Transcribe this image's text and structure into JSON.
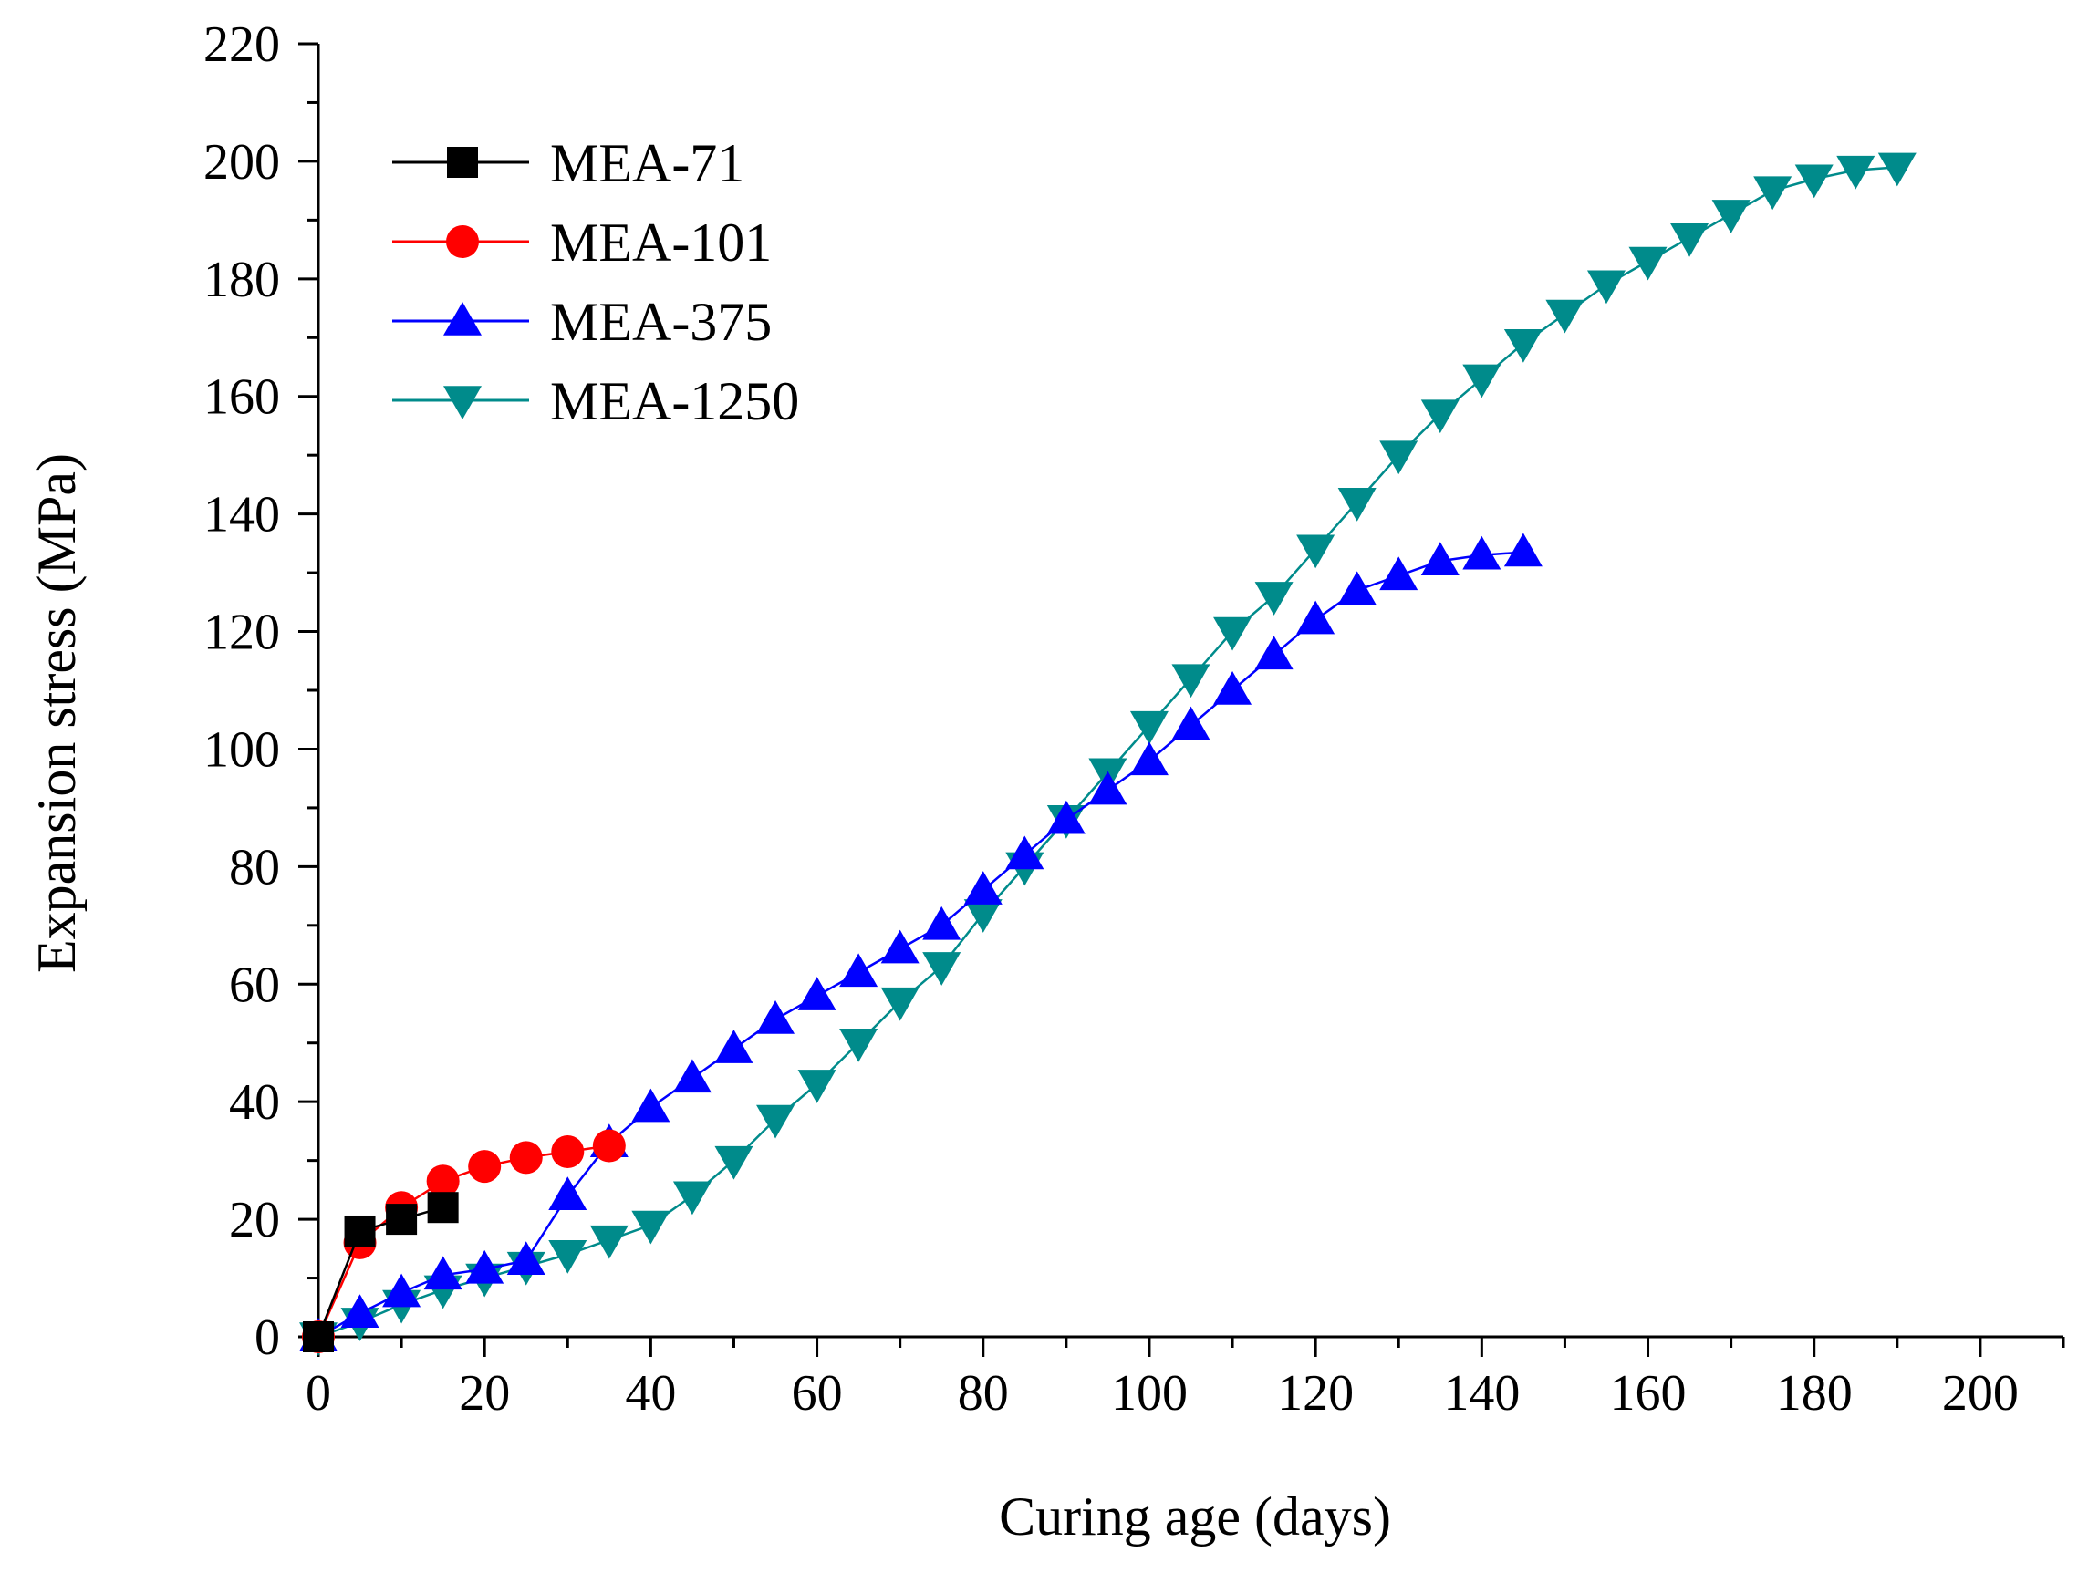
{
  "chart_data": {
    "type": "line",
    "title": "",
    "xlabel": "Curing age (days)",
    "ylabel": "Expansion stress (MPa)",
    "xlim": [
      0,
      210
    ],
    "ylim": [
      0,
      220
    ],
    "xticks": [
      0,
      20,
      40,
      60,
      80,
      100,
      120,
      140,
      160,
      180,
      200
    ],
    "yticks": [
      0,
      20,
      40,
      60,
      80,
      100,
      120,
      140,
      160,
      180,
      200,
      220
    ],
    "grid": false,
    "legend_position": "top-left",
    "series": [
      {
        "name": "MEA-71",
        "marker": "square",
        "color": "#000000",
        "x": [
          0,
          5,
          10,
          15
        ],
        "y": [
          0,
          18,
          20,
          22
        ]
      },
      {
        "name": "MEA-101",
        "marker": "circle",
        "color": "#ff0000",
        "x": [
          0,
          5,
          10,
          15,
          20,
          25,
          30,
          35
        ],
        "y": [
          0,
          16,
          22,
          26.5,
          29,
          30.5,
          31.5,
          32.5
        ]
      },
      {
        "name": "MEA-375",
        "marker": "triangle-up",
        "color": "#0000ff",
        "x": [
          0,
          5,
          10,
          15,
          20,
          25,
          30,
          35,
          40,
          45,
          50,
          55,
          60,
          65,
          70,
          75,
          80,
          85,
          90,
          95,
          100,
          105,
          110,
          115,
          120,
          125,
          130,
          135,
          140,
          145
        ],
        "y": [
          0,
          4,
          7.5,
          10.5,
          11.5,
          13,
          24,
          33,
          39,
          44,
          49,
          54,
          58,
          62,
          66,
          70,
          76,
          82,
          88,
          93,
          98,
          104,
          110,
          116,
          122,
          127,
          129.5,
          132,
          133,
          133.5
        ]
      },
      {
        "name": "MEA-1250",
        "marker": "triangle-down",
        "color": "#008b8b",
        "x": [
          0,
          5,
          10,
          15,
          20,
          25,
          30,
          35,
          40,
          45,
          50,
          55,
          60,
          65,
          70,
          75,
          80,
          85,
          90,
          95,
          100,
          105,
          110,
          115,
          120,
          125,
          130,
          135,
          140,
          145,
          150,
          155,
          160,
          165,
          170,
          175,
          180,
          185,
          190
        ],
        "y": [
          0,
          2.5,
          5.5,
          8,
          10,
          12,
          14,
          16.5,
          19,
          24,
          30,
          37,
          43,
          50,
          57,
          63,
          72,
          80,
          88,
          96,
          104,
          112,
          120,
          126,
          134,
          142,
          150,
          157,
          163,
          169,
          174,
          179,
          183,
          187,
          191,
          195,
          197,
          198.5,
          199
        ]
      }
    ]
  }
}
